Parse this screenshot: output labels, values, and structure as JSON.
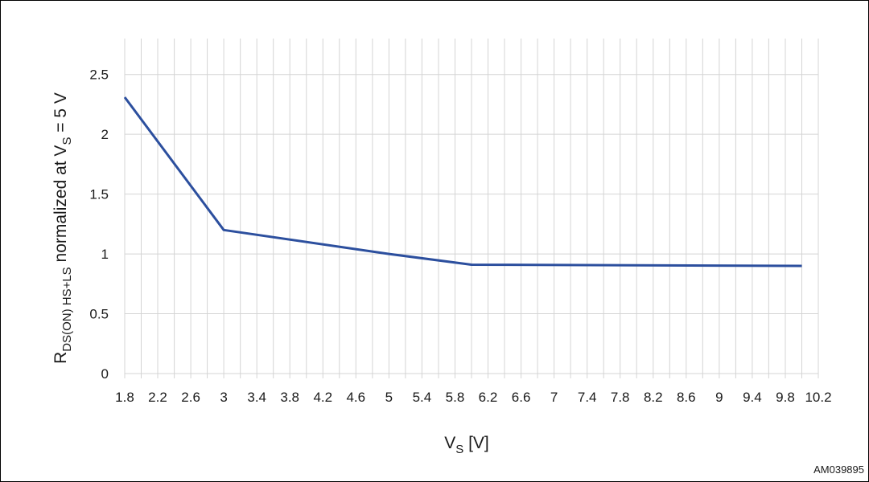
{
  "figure_id": "AM039895",
  "chart_data": {
    "type": "line",
    "xlabel_main": "V",
    "xlabel_sub": "S",
    "xlabel_unit": " [V]",
    "ylabel": {
      "r_main": "R",
      "r_sub": "DS(ON) HS+LS",
      "middle": " normalized  at V",
      "v_sub": "S",
      "tail": " = 5 V"
    },
    "x_tick_labels": [
      "1.8",
      "2.2",
      "2.6",
      "3",
      "3.4",
      "3.8",
      "4.2",
      "4.6",
      "5",
      "5.4",
      "5.8",
      "6.2",
      "6.6",
      "7",
      "7.4",
      "7.8",
      "8.2",
      "8.6",
      "9",
      "9.4",
      "9.8",
      "10.2"
    ],
    "y_tick_labels": [
      "0",
      "0.5",
      "1",
      "1.5",
      "2",
      "2.5"
    ],
    "xlim": [
      1.8,
      10.2
    ],
    "ylim": [
      0,
      2.5
    ],
    "grid": true,
    "line_color": "#2c4f9e",
    "grid_color": "#d4d4d4",
    "series": [
      {
        "x": [
          1.8,
          3,
          5,
          6,
          10
        ],
        "y": [
          2.31,
          1.2,
          1.0,
          0.91,
          0.9
        ]
      }
    ]
  }
}
